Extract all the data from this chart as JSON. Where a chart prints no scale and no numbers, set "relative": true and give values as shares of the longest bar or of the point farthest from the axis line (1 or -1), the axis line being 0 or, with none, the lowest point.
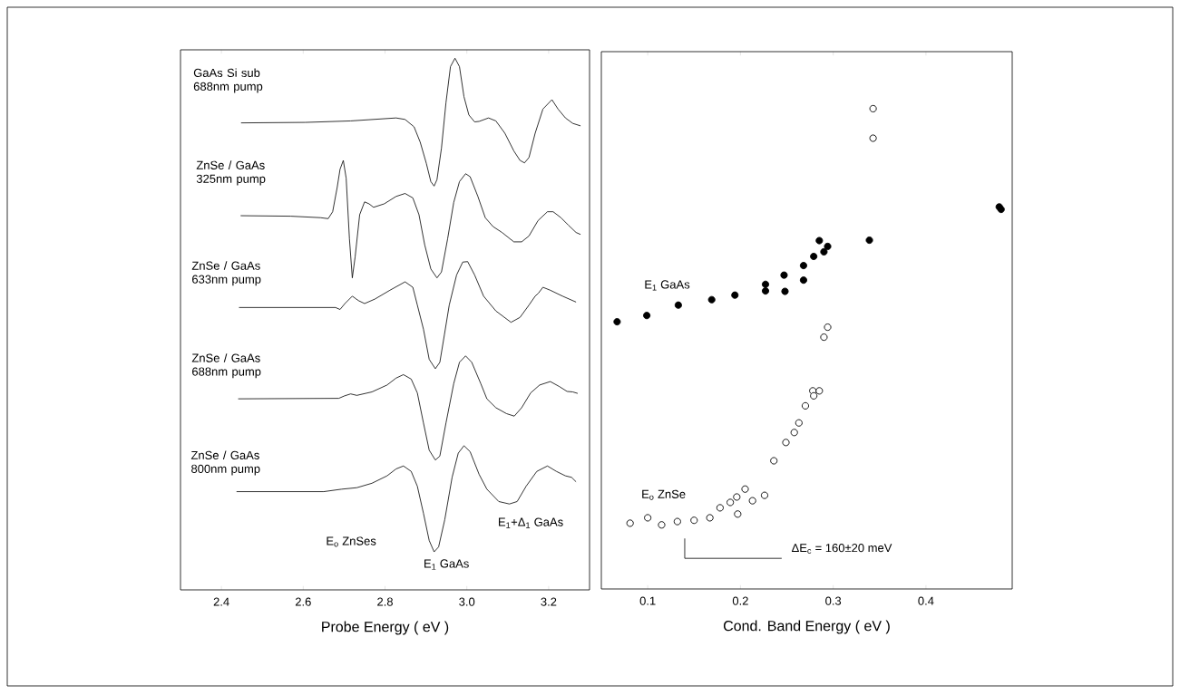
{
  "chart_data": [
    {
      "type": "line",
      "relative": true,
      "xlabel": "Probe Energy ( eV )",
      "xlim": [
        2.3,
        3.3
      ],
      "xticks": [
        2.4,
        2.6,
        2.8,
        {
          "value": 3.0,
          "label": "3.0"
        },
        3.2
      ],
      "annotations": [
        "E$_{o}$ ZnSes",
        "E$_{1}$ GaAs",
        "E$_{1}$+Δ$_{1}$ GaAs"
      ],
      "series": [
        {
          "name": "GaAs Si sub 688nm pump",
          "color": "#000000",
          "x": [
            2.448,
            2.605,
            2.716,
            2.827,
            2.849,
            2.871,
            2.886,
            2.901,
            2.912,
            2.92,
            2.927,
            2.938,
            2.949,
            2.96,
            2.971,
            2.982,
            2.993,
            3.005,
            3.019,
            3.03,
            3.053,
            3.071,
            3.093,
            3.115,
            3.13,
            3.141,
            3.152,
            3.167,
            3.186,
            3.208,
            3.223,
            3.241,
            3.259,
            3.278
          ],
          "values": [
            0.869,
            0.87,
            0.873,
            0.879,
            0.876,
            0.861,
            0.83,
            0.787,
            0.75,
            0.741,
            0.754,
            0.818,
            0.91,
            0.983,
            1.0,
            0.983,
            0.922,
            0.885,
            0.871,
            0.872,
            0.879,
            0.873,
            0.848,
            0.812,
            0.793,
            0.788,
            0.799,
            0.848,
            0.897,
            0.916,
            0.897,
            0.879,
            0.868,
            0.863
          ]
        },
        {
          "name": "ZnSe / GaAs 325nm pump",
          "color": "#000000",
          "x": [
            2.447,
            2.569,
            2.642,
            2.661,
            2.672,
            2.683,
            2.69,
            2.698,
            2.705,
            2.713,
            2.72,
            2.727,
            2.738,
            2.75,
            2.761,
            2.772,
            2.798,
            2.827,
            2.849,
            2.868,
            2.883,
            2.897,
            2.912,
            2.927,
            2.938,
            2.953,
            2.968,
            2.982,
            2.997,
            3.008,
            3.027,
            3.045,
            3.064,
            3.086,
            3.115,
            3.134,
            3.152,
            3.174,
            3.197,
            3.211,
            3.23,
            3.248,
            3.267,
            3.278
          ],
          "values": [
            0.681,
            0.68,
            0.677,
            0.675,
            0.689,
            0.738,
            0.775,
            0.793,
            0.757,
            0.634,
            0.555,
            0.598,
            0.683,
            0.709,
            0.705,
            0.698,
            0.705,
            0.72,
            0.726,
            0.717,
            0.683,
            0.622,
            0.573,
            0.555,
            0.567,
            0.634,
            0.708,
            0.75,
            0.766,
            0.76,
            0.72,
            0.677,
            0.659,
            0.647,
            0.628,
            0.628,
            0.64,
            0.671,
            0.689,
            0.689,
            0.677,
            0.662,
            0.647,
            0.643
          ]
        },
        {
          "name": "ZnSe / GaAs 633nm pump",
          "color": "#000000",
          "x": [
            2.443,
            2.679,
            2.69,
            2.702,
            2.72,
            2.735,
            2.75,
            2.775,
            2.812,
            2.849,
            2.868,
            2.879,
            2.894,
            2.908,
            2.923,
            2.934,
            2.945,
            2.957,
            2.975,
            2.99,
            3.002,
            3.019,
            3.041,
            3.071,
            3.108,
            3.13,
            3.152,
            3.167,
            3.175,
            3.186,
            3.204,
            3.234,
            3.267
          ],
          "values": [
            0.495,
            0.495,
            0.491,
            0.503,
            0.518,
            0.509,
            0.503,
            0.512,
            0.53,
            0.547,
            0.536,
            0.5,
            0.451,
            0.39,
            0.371,
            0.384,
            0.439,
            0.5,
            0.561,
            0.587,
            0.588,
            0.561,
            0.518,
            0.488,
            0.465,
            0.475,
            0.5,
            0.518,
            0.524,
            0.536,
            0.53,
            0.518,
            0.506
          ]
        },
        {
          "name": "ZnSe / GaAs 688nm pump",
          "color": "#000000",
          "x": [
            2.441,
            2.687,
            2.701,
            2.716,
            2.731,
            2.768,
            2.805,
            2.827,
            2.845,
            2.864,
            2.879,
            2.894,
            2.908,
            2.923,
            2.934,
            2.949,
            2.968,
            2.982,
            2.997,
            3.012,
            3.034,
            3.049,
            3.071,
            3.097,
            3.116,
            3.134,
            3.156,
            3.178,
            3.204,
            3.226,
            3.245,
            3.259,
            3.271
          ],
          "values": [
            0.31,
            0.311,
            0.316,
            0.32,
            0.317,
            0.324,
            0.338,
            0.352,
            0.359,
            0.35,
            0.322,
            0.261,
            0.206,
            0.186,
            0.194,
            0.261,
            0.341,
            0.384,
            0.397,
            0.384,
            0.341,
            0.31,
            0.292,
            0.28,
            0.275,
            0.292,
            0.322,
            0.338,
            0.345,
            0.335,
            0.325,
            0.324,
            0.321
          ]
        },
        {
          "name": "ZnSe / GaAs 800nm pump",
          "color": "#000000",
          "x": [
            2.437,
            2.65,
            2.694,
            2.731,
            2.768,
            2.805,
            2.827,
            2.845,
            2.864,
            2.879,
            2.894,
            2.908,
            2.92,
            2.931,
            2.946,
            2.964,
            2.979,
            2.993,
            3.008,
            3.03,
            3.049,
            3.078,
            3.104,
            3.123,
            3.145,
            3.171,
            3.197,
            3.219,
            3.241,
            3.256,
            3.267
          ],
          "values": [
            0.122,
            0.122,
            0.127,
            0.13,
            0.139,
            0.154,
            0.168,
            0.174,
            0.163,
            0.133,
            0.078,
            0.023,
            0.0,
            0.01,
            0.065,
            0.151,
            0.2,
            0.215,
            0.203,
            0.157,
            0.127,
            0.102,
            0.097,
            0.102,
            0.133,
            0.163,
            0.174,
            0.163,
            0.154,
            0.151,
            0.142
          ]
        }
      ]
    },
    {
      "type": "scatter",
      "relative": true,
      "xlabel": "Cond. Band Energy ( eV )",
      "xlim": [
        0.05,
        0.493
      ],
      "xticks": [
        0.1,
        0.2,
        0.3,
        0.4
      ],
      "annotations": [
        "ΔE$_{c}$ = 160±20 meV"
      ],
      "series": [
        {
          "name": "E$_{1}$ GaAs",
          "color": "#000000",
          "marker": "circle",
          "x": [
            0.067,
            0.099,
            0.133,
            0.169,
            0.194,
            0.227,
            0.227,
            0.247,
            0.248,
            0.268,
            0.268,
            0.279,
            0.285,
            0.29,
            0.294,
            0.339,
            0.479,
            0.481
          ],
          "values": [
            0.488,
            0.503,
            0.528,
            0.541,
            0.552,
            0.578,
            0.562,
            0.6,
            0.561,
            0.623,
            0.588,
            0.645,
            0.683,
            0.656,
            0.669,
            0.684,
            0.764,
            0.758
          ]
        },
        {
          "name": "E$_{o}$ ZnSe",
          "color": "#000000",
          "marker": "circle",
          "x": [
            0.343,
            0.343,
            0.081,
            0.1,
            0.115,
            0.132,
            0.15,
            0.167,
            0.178,
            0.189,
            0.196,
            0.197,
            0.205,
            0.213,
            0.226,
            0.236,
            0.249,
            0.258,
            0.263,
            0.27,
            0.278,
            0.279,
            0.285,
            0.29,
            0.294
          ],
          "values": [
            1.0,
            0.929,
            0.004,
            0.017,
            0.0,
            0.008,
            0.011,
            0.017,
            0.041,
            0.054,
            0.067,
            0.026,
            0.086,
            0.058,
            0.071,
            0.154,
            0.198,
            0.222,
            0.245,
            0.286,
            0.322,
            0.31,
            0.322,
            0.451,
            0.475
          ]
        }
      ]
    }
  ]
}
